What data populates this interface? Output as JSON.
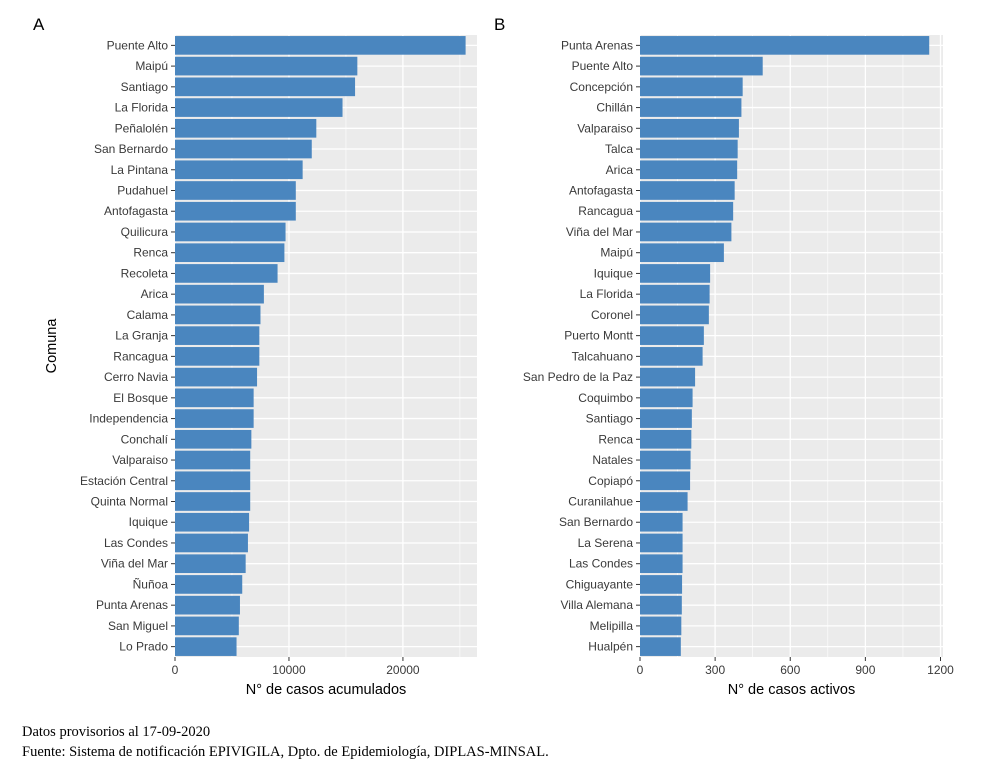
{
  "chart_data": [
    {
      "type": "bar",
      "orientation": "horizontal",
      "panel_label": "A",
      "ylabel": "Comuna",
      "xlabel": "N° de casos acumulados",
      "xlim": [
        0,
        26500
      ],
      "xticks": [
        0,
        10000,
        20000
      ],
      "xtick_labels": [
        "0",
        "10000",
        "20000"
      ],
      "grid": true,
      "categories": [
        "Puente Alto",
        "Maipú",
        "Santiago",
        "La Florida",
        "Peñalolén",
        "San Bernardo",
        "La Pintana",
        "Pudahuel",
        "Antofagasta",
        "Quilicura",
        "Renca",
        "Recoleta",
        "Arica",
        "Calama",
        "La Granja",
        "Rancagua",
        "Cerro Navia",
        "El Bosque",
        "Independencia",
        "Conchalí",
        "Valparaiso",
        "Estación Central",
        "Quinta Normal",
        "Iquique",
        "Las Condes",
        "Viña del Mar",
        "Ñuñoa",
        "Punta Arenas",
        "San Miguel",
        "Lo Prado"
      ],
      "values": [
        25500,
        16000,
        15800,
        14700,
        12400,
        12000,
        11200,
        10600,
        10600,
        9700,
        9600,
        9000,
        7800,
        7500,
        7400,
        7400,
        7200,
        6900,
        6900,
        6700,
        6600,
        6600,
        6600,
        6500,
        6400,
        6200,
        5900,
        5700,
        5600,
        5400
      ]
    },
    {
      "type": "bar",
      "orientation": "horizontal",
      "panel_label": "B",
      "ylabel": "",
      "xlabel": "N° de casos activos",
      "xlim": [
        0,
        1210
      ],
      "xticks": [
        0,
        300,
        600,
        900,
        1200
      ],
      "xtick_labels": [
        "0",
        "300",
        "600",
        "900",
        "1200"
      ],
      "grid": true,
      "categories": [
        "Punta Arenas",
        "Puente Alto",
        "Concepción",
        "Chillán",
        "Valparaiso",
        "Talca",
        "Arica",
        "Antofagasta",
        "Rancagua",
        "Viña del Mar",
        "Maipú",
        "Iquique",
        "La Florida",
        "Coronel",
        "Puerto Montt",
        "Talcahuano",
        "San Pedro de la Paz",
        "Coquimbo",
        "Santiago",
        "Renca",
        "Natales",
        "Copiapó",
        "Curanilahue",
        "San Bernardo",
        "La Serena",
        "Las Condes",
        "Chiguayante",
        "Villa Alemana",
        "Melipilla",
        "Hualpén"
      ],
      "values": [
        1155,
        490,
        410,
        405,
        395,
        390,
        388,
        378,
        372,
        365,
        335,
        280,
        278,
        275,
        255,
        250,
        220,
        210,
        207,
        205,
        202,
        200,
        190,
        170,
        170,
        170,
        168,
        167,
        165,
        163
      ]
    }
  ],
  "notes": {
    "date": "Datos provisorios al 17-09-2020",
    "source": "Fuente: Sistema de notificación EPIVIGILA, Dpto. de Epidemiología, DIPLAS-MINSAL."
  },
  "colors": {
    "bar": "#4a86bf",
    "panel_background": "#ebebeb",
    "grid": "#ffffff",
    "tick": "#333333"
  }
}
